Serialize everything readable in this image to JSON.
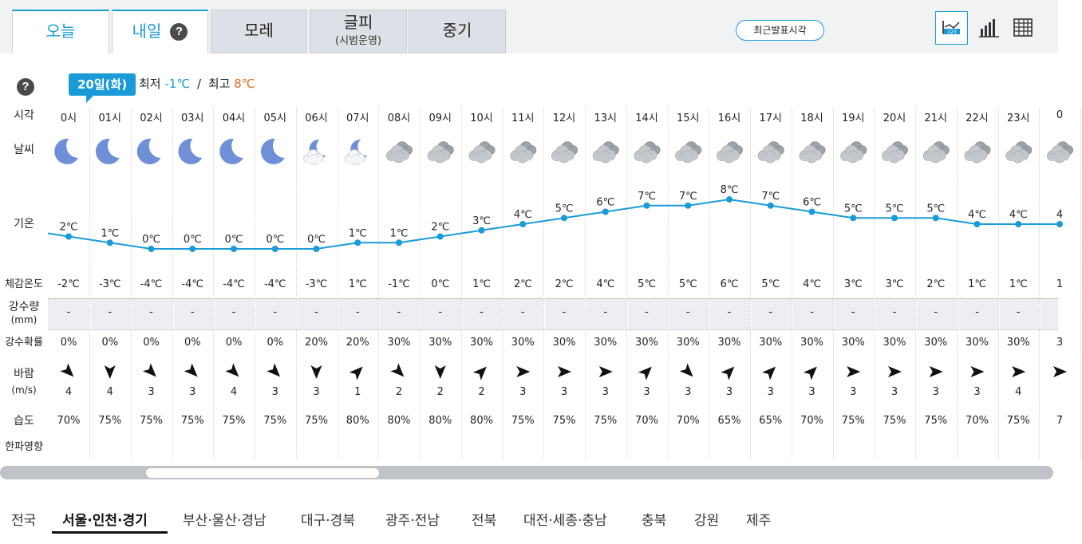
{
  "tabs": [
    {
      "label": "오늘",
      "sub": "",
      "active": true
    },
    {
      "label": "내일",
      "sub": "",
      "active": true,
      "help": "?"
    },
    {
      "label": "모레",
      "sub": ""
    },
    {
      "label": "글피",
      "sub": "(시범운영)"
    },
    {
      "label": "중기",
      "sub": ""
    }
  ],
  "recent_button": "최근발표시각",
  "view_icons": [
    "line-chart-icon",
    "bar-chart-icon",
    "table-grid-icon"
  ],
  "help_label": "?",
  "date_badge": "20일(화)",
  "minmax": {
    "min_label": "최저",
    "min_value": "-1℃",
    "sep": "/",
    "max_label": "최고",
    "max_value": "8℃"
  },
  "colors": {
    "accent": "#1a9bd7",
    "max_temp": "#e26b1c",
    "tab_inactive": "#dde1e7"
  },
  "row_labels": {
    "time": "시각",
    "weather": "날씨",
    "temp": "기온",
    "feels": "체감온도",
    "precip": "강수량",
    "precip_unit": "(mm)",
    "prob": "강수확률",
    "wind": "바람",
    "wind_unit": "(m/s)",
    "humidity": "습도",
    "cold": "한파영향"
  },
  "hours": [
    "0시",
    "01시",
    "02시",
    "03시",
    "04시",
    "05시",
    "06시",
    "07시",
    "08시",
    "09시",
    "10시",
    "11시",
    "12시",
    "13시",
    "14시",
    "15시",
    "16시",
    "17시",
    "18시",
    "19시",
    "20시",
    "21시",
    "22시",
    "23시",
    "0"
  ],
  "weather_icons": [
    "moon-icon",
    "moon-icon",
    "moon-icon",
    "moon-icon",
    "moon-icon",
    "moon-icon",
    "moon-cloud-icon",
    "moon-cloud-icon",
    "cloudy-icon",
    "cloudy-icon",
    "cloudy-icon",
    "cloudy-icon",
    "cloudy-icon",
    "cloudy-icon",
    "cloudy-icon",
    "cloudy-icon",
    "cloudy-icon",
    "cloudy-icon",
    "cloudy-icon",
    "cloudy-icon",
    "cloudy-icon",
    "cloudy-icon",
    "cloudy-icon",
    "cloudy-icon",
    "cloudy-icon"
  ],
  "temps": [
    2,
    1,
    0,
    0,
    0,
    0,
    0,
    1,
    1,
    2,
    3,
    4,
    5,
    6,
    7,
    7,
    8,
    7,
    6,
    5,
    5,
    5,
    4,
    4,
    4
  ],
  "temp_labels": [
    "2℃",
    "1℃",
    "0℃",
    "0℃",
    "0℃",
    "0℃",
    "0℃",
    "1℃",
    "1℃",
    "2℃",
    "3℃",
    "4℃",
    "5℃",
    "6℃",
    "7℃",
    "7℃",
    "8℃",
    "7℃",
    "6℃",
    "5℃",
    "5℃",
    "5℃",
    "4℃",
    "4℃",
    "4"
  ],
  "feels": [
    "-2℃",
    "-3℃",
    "-4℃",
    "-4℃",
    "-4℃",
    "-4℃",
    "-3℃",
    "1℃",
    "-1℃",
    "0℃",
    "1℃",
    "2℃",
    "2℃",
    "4℃",
    "5℃",
    "5℃",
    "6℃",
    "5℃",
    "4℃",
    "3℃",
    "3℃",
    "2℃",
    "1℃",
    "1℃",
    "1"
  ],
  "precip": [
    "-",
    "-",
    "-",
    "-",
    "-",
    "-",
    "-",
    "-",
    "-",
    "-",
    "-",
    "-",
    "-",
    "-",
    "-",
    "-",
    "-",
    "-",
    "-",
    "-",
    "-",
    "-",
    "-",
    "-",
    ""
  ],
  "prob": [
    "0%",
    "0%",
    "0%",
    "0%",
    "0%",
    "0%",
    "20%",
    "20%",
    "30%",
    "30%",
    "30%",
    "30%",
    "30%",
    "30%",
    "30%",
    "30%",
    "30%",
    "30%",
    "30%",
    "30%",
    "30%",
    "30%",
    "30%",
    "30%",
    "3"
  ],
  "wind_dir_deg": [
    135,
    180,
    135,
    135,
    135,
    135,
    180,
    45,
    135,
    180,
    45,
    90,
    90,
    90,
    45,
    135,
    45,
    45,
    45,
    90,
    90,
    90,
    90,
    90,
    90
  ],
  "wind_speed": [
    "4",
    "4",
    "3",
    "3",
    "4",
    "3",
    "3",
    "1",
    "2",
    "2",
    "2",
    "3",
    "3",
    "3",
    "3",
    "3",
    "3",
    "3",
    "3",
    "3",
    "3",
    "3",
    "3",
    "4",
    ""
  ],
  "humidity": [
    "70%",
    "75%",
    "75%",
    "75%",
    "75%",
    "75%",
    "75%",
    "80%",
    "80%",
    "80%",
    "80%",
    "75%",
    "75%",
    "75%",
    "70%",
    "70%",
    "65%",
    "65%",
    "70%",
    "75%",
    "75%",
    "75%",
    "70%",
    "75%",
    "7"
  ],
  "regions": [
    {
      "label": "전국"
    },
    {
      "label": "서울·인천·경기",
      "active": true
    },
    {
      "label": "부산·울산·경남"
    },
    {
      "label": "대구·경북"
    },
    {
      "label": "광주·전남"
    },
    {
      "label": "전북"
    },
    {
      "label": "대전·세종·충남"
    },
    {
      "label": "충북"
    },
    {
      "label": "강원"
    },
    {
      "label": "제주"
    }
  ]
}
